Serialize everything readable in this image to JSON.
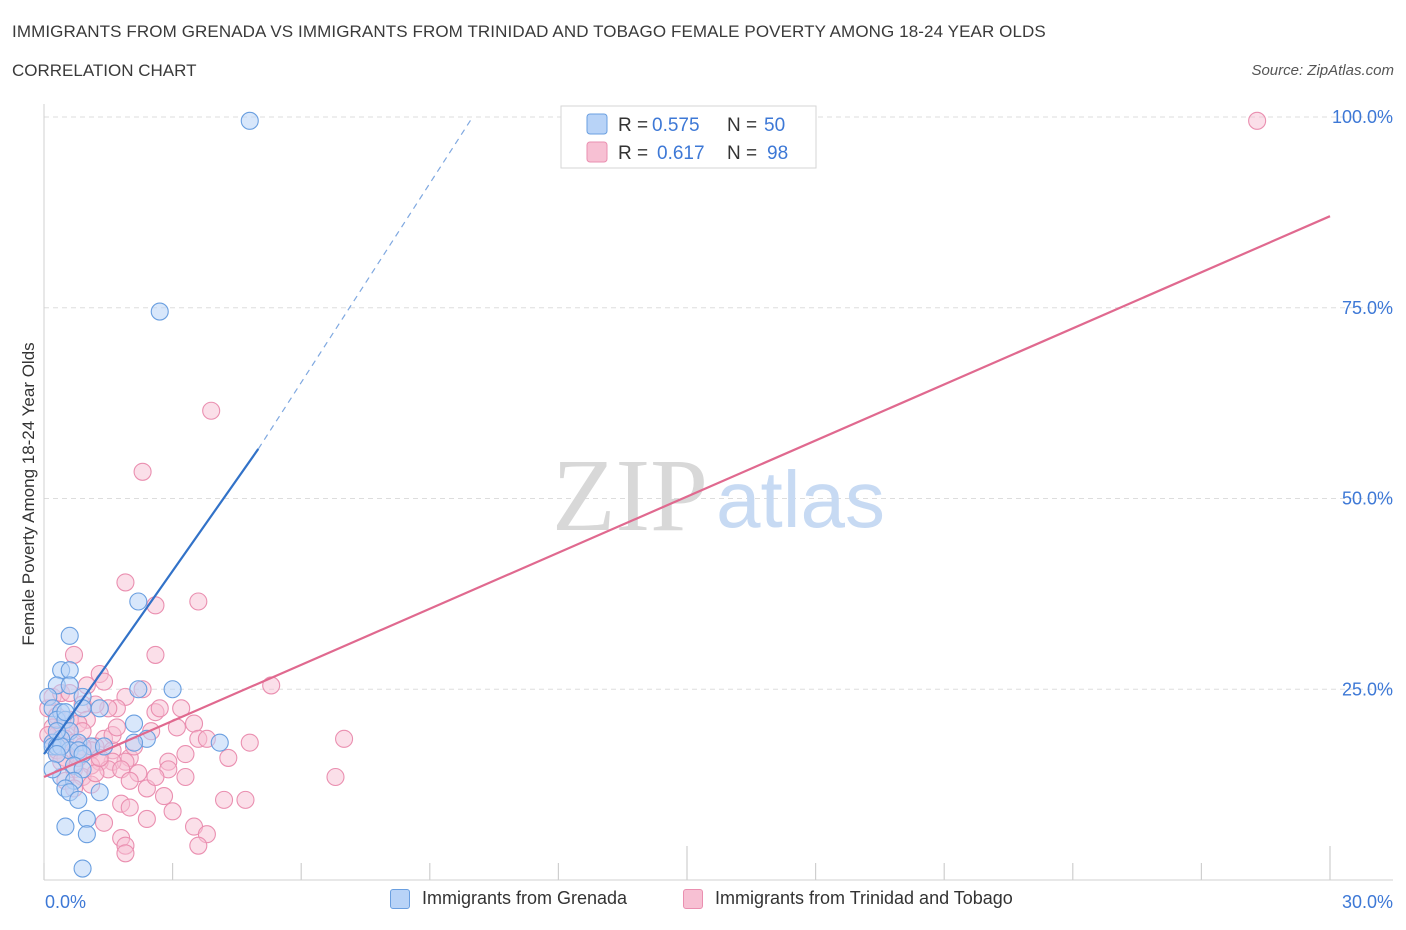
{
  "header": {
    "title": "IMMIGRANTS FROM GRENADA VS IMMIGRANTS FROM TRINIDAD AND TOBAGO FEMALE POVERTY AMONG 18-24 YEAR OLDS",
    "subtitle": "CORRELATION CHART",
    "source": "Source: ZipAtlas.com"
  },
  "watermark": {
    "zip": "ZIP",
    "atlas": "atlas"
  },
  "colors": {
    "blue_fill": "#b8d3f7",
    "blue_stroke": "#6a9fe0",
    "blue_line": "#3272c8",
    "pink_fill": "#f7c0d3",
    "pink_stroke": "#ea8fb0",
    "pink_line": "#e0698f",
    "axis_label": "#3d78d6",
    "grid": "#dddddd"
  },
  "legend_top": {
    "rows": [
      {
        "r_label": "R =",
        "r_value": "0.575",
        "n_label": "N =",
        "n_value": "50"
      },
      {
        "r_label": "R =",
        "r_value": "0.617",
        "n_label": "N =",
        "n_value": "98"
      }
    ]
  },
  "chart_data": {
    "type": "scatter",
    "title": "IMMIGRANTS FROM GRENADA VS IMMIGRANTS FROM TRINIDAD AND TOBAGO FEMALE POVERTY AMONG 18-24 YEAR OLDS",
    "xlabel": "",
    "ylabel": "Female Poverty Among 18-24 Year Olds",
    "xlim": [
      0,
      30
    ],
    "ylim": [
      0,
      100
    ],
    "x_tick_labels": [
      "0.0%",
      "30.0%"
    ],
    "y_tick_labels": [
      "100.0%",
      "75.0%",
      "50.0%",
      "25.0%"
    ],
    "y_ticks": [
      100,
      75,
      50,
      25
    ],
    "legend_position": "bottom",
    "series": [
      {
        "name": "Immigrants from Grenada",
        "color": "blue",
        "r": 0.575,
        "n": 50,
        "trend": {
          "x0": 0.0,
          "y0": 16.5,
          "x1": 5.0,
          "y1": 56.5,
          "dashed_x1": 10.0,
          "dashed_y1": 100
        },
        "points": [
          [
            4.8,
            99.5
          ],
          [
            2.7,
            74.5
          ],
          [
            2.2,
            36.5
          ],
          [
            0.6,
            32
          ],
          [
            0.4,
            27.5
          ],
          [
            0.6,
            27.5
          ],
          [
            0.3,
            25.5
          ],
          [
            0.6,
            25.5
          ],
          [
            3.0,
            25
          ],
          [
            2.2,
            25
          ],
          [
            0.1,
            24
          ],
          [
            0.9,
            24
          ],
          [
            0.2,
            22.5
          ],
          [
            0.4,
            22
          ],
          [
            1.3,
            22.5
          ],
          [
            0.9,
            22.5
          ],
          [
            0.3,
            21
          ],
          [
            0.5,
            21
          ],
          [
            2.1,
            20.5
          ],
          [
            0.6,
            19.5
          ],
          [
            0.4,
            18.5
          ],
          [
            0.2,
            18
          ],
          [
            0.8,
            18
          ],
          [
            0.2,
            17.5
          ],
          [
            0.3,
            17.5
          ],
          [
            0.6,
            17
          ],
          [
            0.4,
            17.5
          ],
          [
            1.1,
            17.5
          ],
          [
            2.4,
            18.5
          ],
          [
            2.1,
            18
          ],
          [
            4.1,
            18
          ],
          [
            0.8,
            17
          ],
          [
            0.3,
            16.5
          ],
          [
            0.9,
            16.5
          ],
          [
            0.7,
            15
          ],
          [
            0.9,
            14.5
          ],
          [
            0.4,
            13.5
          ],
          [
            0.7,
            13
          ],
          [
            0.5,
            12
          ],
          [
            0.6,
            11.5
          ],
          [
            1.3,
            11.5
          ],
          [
            0.8,
            10.5
          ],
          [
            1.0,
            8
          ],
          [
            0.5,
            7
          ],
          [
            1.0,
            6
          ],
          [
            0.9,
            1.5
          ],
          [
            0.2,
            14.5
          ],
          [
            1.4,
            17.5
          ],
          [
            0.3,
            19.5
          ],
          [
            0.5,
            22
          ]
        ]
      },
      {
        "name": "Immigrants from Trinidad and Tobago",
        "color": "pink",
        "r": 0.617,
        "n": 98,
        "trend": {
          "x0": 0.0,
          "y0": 13.5,
          "x1": 30.0,
          "y1": 87
        },
        "points": [
          [
            28.3,
            99.5
          ],
          [
            3.9,
            61.5
          ],
          [
            2.3,
            53.5
          ],
          [
            1.9,
            39
          ],
          [
            2.6,
            36
          ],
          [
            3.6,
            36.5
          ],
          [
            2.6,
            29.5
          ],
          [
            0.7,
            29.5
          ],
          [
            1.3,
            27
          ],
          [
            1.4,
            26
          ],
          [
            5.3,
            25.5
          ],
          [
            2.3,
            25
          ],
          [
            1.9,
            24
          ],
          [
            3.2,
            22.5
          ],
          [
            2.6,
            22
          ],
          [
            1.7,
            22.5
          ],
          [
            1.5,
            22.5
          ],
          [
            1.2,
            23
          ],
          [
            0.9,
            23
          ],
          [
            0.1,
            22.5
          ],
          [
            0.3,
            21.5
          ],
          [
            0.6,
            21
          ],
          [
            3.5,
            20.5
          ],
          [
            1.0,
            21
          ],
          [
            0.8,
            20.5
          ],
          [
            0.4,
            20
          ],
          [
            0.2,
            20
          ],
          [
            0.6,
            19.5
          ],
          [
            0.9,
            19.5
          ],
          [
            0.3,
            19
          ],
          [
            0.1,
            19
          ],
          [
            0.5,
            18.5
          ],
          [
            1.4,
            18.5
          ],
          [
            3.6,
            18.5
          ],
          [
            3.8,
            18.5
          ],
          [
            4.8,
            18
          ],
          [
            7.0,
            18.5
          ],
          [
            0.2,
            18
          ],
          [
            0.7,
            18
          ],
          [
            1.2,
            17.5
          ],
          [
            2.5,
            19.5
          ],
          [
            0.4,
            17.5
          ],
          [
            1.1,
            17
          ],
          [
            1.6,
            17
          ],
          [
            0.8,
            16.5
          ],
          [
            0.3,
            16.5
          ],
          [
            2.0,
            16
          ],
          [
            1.9,
            15.5
          ],
          [
            4.3,
            16
          ],
          [
            1.6,
            15.5
          ],
          [
            1.3,
            15.5
          ],
          [
            2.9,
            15.5
          ],
          [
            1.1,
            15
          ],
          [
            0.7,
            14.5
          ],
          [
            1.5,
            14.5
          ],
          [
            2.2,
            14
          ],
          [
            1.8,
            14.5
          ],
          [
            2.9,
            14.5
          ],
          [
            6.8,
            13.5
          ],
          [
            3.3,
            13.5
          ],
          [
            0.9,
            13.5
          ],
          [
            2.0,
            13
          ],
          [
            0.5,
            13
          ],
          [
            1.1,
            12.5
          ],
          [
            2.8,
            11
          ],
          [
            4.2,
            10.5
          ],
          [
            4.7,
            10.5
          ],
          [
            1.8,
            10
          ],
          [
            2.0,
            9.5
          ],
          [
            3.0,
            9
          ],
          [
            2.4,
            8
          ],
          [
            3.5,
            7
          ],
          [
            1.4,
            7.5
          ],
          [
            3.8,
            6
          ],
          [
            1.8,
            5.5
          ],
          [
            3.6,
            4.5
          ],
          [
            1.9,
            4.5
          ],
          [
            1.9,
            3.5
          ],
          [
            0.2,
            24
          ],
          [
            0.4,
            24.5
          ],
          [
            1.0,
            25.5
          ],
          [
            0.6,
            24.5
          ],
          [
            2.7,
            22.5
          ],
          [
            3.1,
            20
          ],
          [
            0.3,
            17
          ],
          [
            0.5,
            16
          ],
          [
            1.2,
            14
          ],
          [
            2.4,
            12
          ],
          [
            0.7,
            12
          ],
          [
            1.6,
            19
          ],
          [
            2.1,
            17.5
          ],
          [
            0.9,
            17.5
          ],
          [
            1.7,
            20
          ],
          [
            0.4,
            15.5
          ],
          [
            3.3,
            16.5
          ],
          [
            1.3,
            16
          ],
          [
            2.6,
            13.5
          ],
          [
            0.8,
            16
          ]
        ]
      }
    ]
  },
  "legend_bottom": {
    "items": [
      {
        "label": "Immigrants from Grenada"
      },
      {
        "label": "Immigrants from Trinidad and Tobago"
      }
    ]
  }
}
